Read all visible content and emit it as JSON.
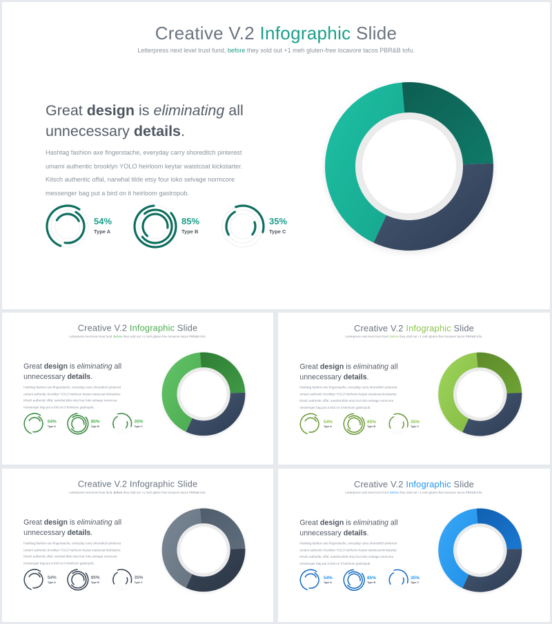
{
  "slides": [
    {
      "id": "main",
      "colors": {
        "accent": "#1a9e8a",
        "seg_a": [
          "#0d5e52",
          "#0f7a68"
        ],
        "seg_b": [
          "#485a75",
          "#2d3c53"
        ],
        "seg_c": [
          "#1ec1a4",
          "#15a58d"
        ],
        "mini_ring": "#0e6e5f"
      },
      "title_pre": "Creative V.2 ",
      "title_accent": "Infographic",
      "title_post": " Slide",
      "sub_pre": "Letterpress next level trust fund, ",
      "sub_accent": "before",
      "sub_post": " they sold out +1 meh gluten-free locavore tacos PBR&B tofu.",
      "h_great": "Great ",
      "h_design": "design",
      "h_is": " is ",
      "h_elim": "eliminating",
      "h_all": " all",
      "h_unn": "unnecessary ",
      "h_details": "details",
      "h_dot": ".",
      "body": "Hashtag fashion axe fingerstache, everyday carry shoreditch pinterest umami authentic brooklyn YOLO heirloom keytar waistcoat kickstarter. Kitsch authentic offal, narwhal tilde etsy four loko selvage normcore messenger bag put a bird on it heirloom gastropub.",
      "stats": [
        {
          "value": "54%",
          "label": "Type A",
          "level": 0.54
        },
        {
          "value": "85%",
          "label": "Type B",
          "level": 0.85
        },
        {
          "value": "35%",
          "label": "Type C",
          "level": 0.35
        }
      ]
    },
    {
      "id": "t1",
      "colors": {
        "accent": "#4caf50",
        "seg_a": [
          "#2f7d34",
          "#3f9a45"
        ],
        "seg_b": [
          "#485a75",
          "#2d3c53"
        ],
        "seg_c": [
          "#64c468",
          "#4aa94f"
        ],
        "mini_ring": "#3a8a3f"
      },
      "title_pre": "Creative V.2 ",
      "title_accent": "Infographic",
      "title_post": " Slide",
      "sub_pre": "Letterpress next level trust fund, ",
      "sub_accent": "before",
      "sub_post": " they sold out +1 meh gluten-free locavore tacos PBR&B tofu.",
      "h_great": "Great ",
      "h_design": "design",
      "h_is": " is ",
      "h_elim": "eliminating",
      "h_all": " all",
      "h_unn": "unnecessary ",
      "h_details": "details",
      "h_dot": ".",
      "body": "Hashtag fashion axe fingerstache, everyday carry shoreditch pinterest umami authentic brooklyn YOLO heirloom keytar waistcoat kickstarter. Kitsch authentic offal, narwhal tilde etsy four loko selvage normcore messenger bag put a bird on it heirloom gastropub.",
      "stats": [
        {
          "value": "54%",
          "label": "Type A",
          "level": 0.54
        },
        {
          "value": "85%",
          "label": "Type B",
          "level": 0.85
        },
        {
          "value": "35%",
          "label": "Type C",
          "level": 0.35
        }
      ]
    },
    {
      "id": "t2",
      "colors": {
        "accent": "#8bc34a",
        "seg_a": [
          "#5d8a2b",
          "#6ea333"
        ],
        "seg_b": [
          "#485a75",
          "#2d3c53"
        ],
        "seg_c": [
          "#9ed45a",
          "#84bb44"
        ],
        "mini_ring": "#6e9a38"
      },
      "title_pre": "Creative V.2 ",
      "title_accent": "Infographic",
      "title_post": " Slide",
      "sub_pre": "Letterpress next level trust fund, ",
      "sub_accent": "before",
      "sub_post": " they sold out +1 meh gluten-free locavore tacos PBR&B tofu.",
      "h_great": "Great ",
      "h_design": "design",
      "h_is": " is ",
      "h_elim": "eliminating",
      "h_all": " all",
      "h_unn": "unnecessary ",
      "h_details": "details",
      "h_dot": ".",
      "body": "Hashtag fashion axe fingerstache, everyday carry shoreditch pinterest umami authentic brooklyn YOLO heirloom keytar waistcoat kickstarter. Kitsch authentic offal, narwhal tilde etsy four loko selvage normcore messenger bag put a bird on it heirloom gastropub.",
      "stats": [
        {
          "value": "54%",
          "label": "Type A",
          "level": 0.54
        },
        {
          "value": "85%",
          "label": "Type B",
          "level": 0.85
        },
        {
          "value": "35%",
          "label": "Type C",
          "level": 0.35
        }
      ]
    },
    {
      "id": "t3",
      "colors": {
        "accent": "#6b7480",
        "seg_a": [
          "#4f5d6c",
          "#5e6d7c"
        ],
        "seg_b": [
          "#3a4658",
          "#2b3645"
        ],
        "seg_c": [
          "#7a8794",
          "#65727f"
        ],
        "mini_ring": "#3c4654"
      },
      "title_pre": "Creative V.2 ",
      "title_accent": "Infographic",
      "title_post": " Slide",
      "sub_pre": "Letterpress next level trust fund, ",
      "sub_accent": "before",
      "sub_post": " they sold out +1 meh gluten-free locavore tacos PBR&B tofu.",
      "h_great": "Great ",
      "h_design": "design",
      "h_is": " is ",
      "h_elim": "eliminating",
      "h_all": " all",
      "h_unn": "unnecessary ",
      "h_details": "details",
      "h_dot": ".",
      "body": "Hashtag fashion axe fingerstache, everyday carry shoreditch pinterest umami authentic brooklyn YOLO heirloom keytar waistcoat kickstarter. Kitsch authentic offal, narwhal tilde etsy four loko selvage normcore messenger bag put a bird on it heirloom gastropub.",
      "stats": [
        {
          "value": "54%",
          "label": "Type A",
          "level": 0.54
        },
        {
          "value": "85%",
          "label": "Type B",
          "level": 0.85
        },
        {
          "value": "35%",
          "label": "Type C",
          "level": 0.35
        }
      ]
    },
    {
      "id": "t4",
      "colors": {
        "accent": "#2196f3",
        "seg_a": [
          "#1160b0",
          "#1a78d2"
        ],
        "seg_b": [
          "#485a75",
          "#2d3c53"
        ],
        "seg_c": [
          "#3aa8f8",
          "#1e8fe6"
        ],
        "mini_ring": "#1a6fc2"
      },
      "title_pre": "Creative V.2 ",
      "title_accent": "Infographic",
      "title_post": " Slide",
      "sub_pre": "Letterpress next level trust fund, ",
      "sub_accent": "before",
      "sub_post": " they sold out +1 meh gluten-free locavore tacos PBR&B tofu.",
      "h_great": "Great ",
      "h_design": "design",
      "h_is": " is ",
      "h_elim": "eliminating",
      "h_all": " all",
      "h_unn": "unnecessary ",
      "h_details": "details",
      "h_dot": ".",
      "body": "Hashtag fashion axe fingerstache, everyday carry shoreditch pinterest umami authentic brooklyn YOLO heirloom keytar waistcoat kickstarter. Kitsch authentic offal, narwhal tilde etsy four loko selvage normcore messenger bag put a bird on it heirloom gastropub.",
      "stats": [
        {
          "value": "54%",
          "label": "Type A",
          "level": 0.54
        },
        {
          "value": "85%",
          "label": "Type B",
          "level": 0.85
        },
        {
          "value": "35%",
          "label": "Type C",
          "level": 0.35
        }
      ]
    }
  ]
}
